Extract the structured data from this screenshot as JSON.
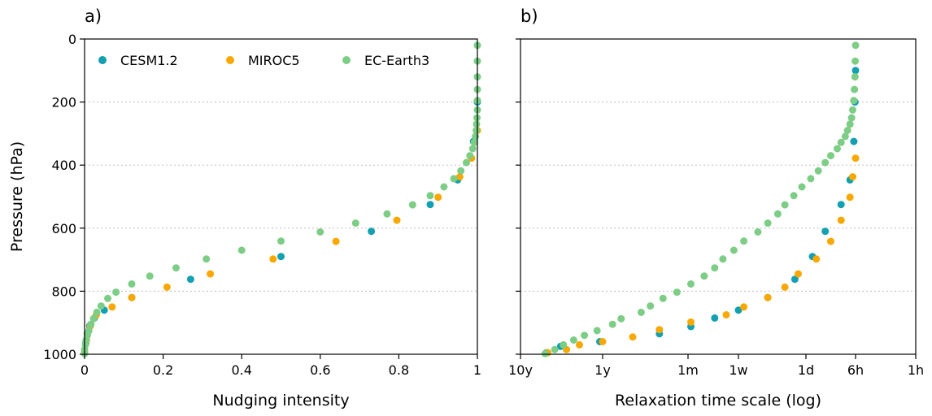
{
  "colors": {
    "CESM1.2": "#13a0b0",
    "MIROC5": "#f8a800",
    "EC-Earth3": "#7dcd86",
    "grid": "#bdbdbd"
  },
  "legend": {
    "placement": "top-left",
    "entries": [
      "CESM1.2",
      "MIROC5",
      "EC-Earth3"
    ]
  },
  "chart_data": [
    {
      "type": "scatter",
      "panel_label": "a)",
      "xlabel": "Nudging intensity",
      "ylabel": "Pressure (hPa)",
      "xlim": [
        0,
        1
      ],
      "ylim": [
        1000,
        0
      ],
      "y_inverted": true,
      "grid": "horizontal dotted",
      "xticks": [
        0,
        0.2,
        0.4,
        0.6,
        0.8,
        1
      ],
      "xtick_labels": [
        "0",
        "0.2",
        "0.4",
        "0.6",
        "0.8",
        "1"
      ],
      "yticks": [
        0,
        200,
        400,
        600,
        800,
        1000
      ],
      "ytick_labels": [
        "0",
        "200",
        "400",
        "600",
        "800",
        "1000"
      ],
      "series": [
        {
          "name": "CESM1.2",
          "x": [
            0.0,
            0.003,
            0.007,
            0.013,
            0.025,
            0.05,
            0.12,
            0.27,
            0.5,
            0.73,
            0.88,
            0.95,
            0.99,
            1.0
          ],
          "y": [
            995,
            965,
            935,
            910,
            885,
            860,
            820,
            762,
            690,
            610,
            525,
            447,
            325,
            200
          ]
        },
        {
          "name": "MIROC5",
          "x": [
            0.0,
            0.005,
            0.015,
            0.03,
            0.07,
            0.12,
            0.21,
            0.32,
            0.48,
            0.64,
            0.795,
            0.9,
            0.955,
            0.985,
            1.0
          ],
          "y": [
            995,
            955,
            910,
            875,
            850,
            820,
            787,
            745,
            698,
            642,
            575,
            502,
            437,
            378,
            290
          ]
        },
        {
          "name": "EC-Earth3",
          "x": [
            0.0,
            0.0,
            0.002,
            0.004,
            0.007,
            0.011,
            0.016,
            0.023,
            0.031,
            0.042,
            0.059,
            0.08,
            0.12,
            0.166,
            0.233,
            0.31,
            0.4,
            0.5,
            0.6,
            0.69,
            0.77,
            0.835,
            0.88,
            0.915,
            0.94,
            0.958,
            0.972,
            0.981,
            0.988,
            0.992,
            0.995,
            0.997,
            0.998,
            0.999,
            1.0,
            1.0,
            1.0,
            1.0,
            1.0,
            1.0
          ],
          "y": [
            998,
            985,
            970,
            955,
            940,
            925,
            905,
            887,
            867,
            847,
            823,
            803,
            777,
            752,
            726,
            698,
            670,
            641,
            612,
            584,
            555,
            526,
            497,
            469,
            443,
            418,
            392,
            370,
            348,
            328,
            309,
            290,
            270,
            250,
            225,
            195,
            160,
            120,
            70,
            20
          ]
        }
      ]
    },
    {
      "type": "scatter",
      "panel_label": "b)",
      "xlabel": "Relaxation time scale (log)",
      "ylabel": "",
      "x_scale": "log",
      "xtick_labels": [
        "10y",
        "1y",
        "1m",
        "1w",
        "1d",
        "6h",
        "1h"
      ],
      "ylim": [
        1000,
        0
      ],
      "y_inverted": true,
      "grid": "horizontal dotted",
      "yticks": [
        0,
        200,
        400,
        600,
        800,
        1000
      ],
      "series": [
        {
          "name": "CESM1.2",
          "x": [
            "58 months",
            "39 months",
            "13 months",
            "10 weeks",
            "4 weeks",
            "14 days",
            "7 days",
            "3 days",
            "33 hours",
            "20 hours",
            "14 hours",
            "9 hours",
            "7 hours",
            "6.3 hours",
            "6.1 hours",
            "6 hours"
          ],
          "y": [
            995,
            975,
            960,
            935,
            912,
            885,
            860,
            820,
            762,
            690,
            610,
            525,
            447,
            325,
            200,
            100
          ]
        },
        {
          "name": "MIROC5",
          "x": [
            "56 months",
            "33 months",
            "23 months",
            "12 months",
            "5 months",
            "10 weeks",
            "4 weeks",
            "10 days",
            "6 days",
            "3 days",
            "44 hours",
            "30 hours",
            "18 hours",
            "12 hours",
            "9 hours",
            "7 hours",
            "6.5 hours",
            "6 hours"
          ],
          "y": [
            995,
            985,
            970,
            960,
            945,
            922,
            898,
            875,
            850,
            820,
            787,
            745,
            698,
            642,
            575,
            502,
            437,
            378
          ]
        },
        {
          "name": "EC-Earth3",
          "x": [
            "60 months",
            "46 months",
            "36 months",
            "27 months",
            "20 months",
            "14 months",
            "9 months",
            "7 months",
            "17 weeks",
            "13 weeks",
            "9 weeks",
            "6 weeks",
            "4 weeks",
            "19 days",
            "14 days",
            "11 days",
            "8 days",
            "6 days",
            "4 days",
            "3 days",
            "54 hours",
            "44 hours",
            "34 hours",
            "27 hours",
            "21 hours",
            "17 hours",
            "14 hours",
            "12 hours",
            "10 hours",
            "9 hours",
            "8 hours",
            "7.5 hours",
            "7 hours",
            "6.7 hours",
            "6.5 hours",
            "6.3 hours",
            "6.2 hours",
            "6.1 hours",
            "6.05 hours",
            "6 hours"
          ],
          "y": [
            998,
            985,
            970,
            955,
            940,
            925,
            905,
            887,
            867,
            847,
            823,
            803,
            777,
            752,
            726,
            698,
            670,
            641,
            612,
            584,
            555,
            526,
            497,
            469,
            443,
            418,
            392,
            370,
            348,
            328,
            309,
            290,
            270,
            250,
            225,
            195,
            160,
            120,
            70,
            20
          ]
        }
      ]
    }
  ]
}
